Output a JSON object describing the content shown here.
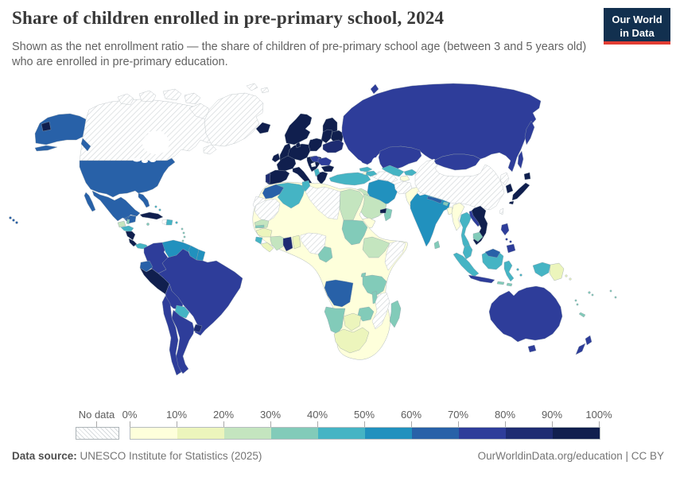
{
  "header": {
    "title": "Share of children enrolled in pre-primary school, 2024",
    "subtitle": "Shown as the net enrollment ratio — the share of children of pre-primary school age (between 3 and 5 years old) who are enrolled in pre-primary education."
  },
  "logo": {
    "line1": "Our World",
    "line2": "in Data",
    "bg_color": "#12304f",
    "accent_color": "#e23d33"
  },
  "legend": {
    "no_data_label": "No data",
    "tick_labels": [
      "0%",
      "10%",
      "20%",
      "30%",
      "40%",
      "50%",
      "60%",
      "70%",
      "80%",
      "90%",
      "100%"
    ]
  },
  "footer": {
    "data_source_label": "Data source:",
    "data_source": "UNESCO Institute for Statistics (2025)",
    "right": "OurWorldinData.org/education | CC BY"
  },
  "chart_data": {
    "type": "heatmap",
    "map_form": "world-choropleth",
    "title": "Share of children enrolled in pre-primary school, 2024",
    "unit": "%",
    "value_range": [
      0,
      100
    ],
    "legend_position": "bottom",
    "bin_colors": [
      "#feffdb",
      "#ecf5bc",
      "#c4e5bf",
      "#82cbb9",
      "#45b4c4",
      "#2191be",
      "#2861a8",
      "#2e3d9a",
      "#1e2c72",
      "#101f4e"
    ],
    "bin_ranges": [
      "0-10%",
      "10-20%",
      "20-30%",
      "30-40%",
      "40-50%",
      "50-60%",
      "60-70%",
      "70-80%",
      "80-90%",
      "90-100%"
    ],
    "no_data": {
      "label": "No data",
      "pattern": "gray-diagonal-hatch"
    },
    "regions": [
      {
        "id": "canada",
        "name": "Canada",
        "bin": 0
      },
      {
        "id": "greenland",
        "name": "Greenland",
        "bin": 0
      },
      {
        "id": "usa",
        "name": "United States",
        "bin": 7
      },
      {
        "id": "mexico",
        "name": "Mexico",
        "bin": 7
      },
      {
        "id": "guatemala",
        "name": "Guatemala",
        "bin": 3
      },
      {
        "id": "belize",
        "name": "Belize",
        "bin": 4
      },
      {
        "id": "honduras",
        "name": "Honduras",
        "bin": 5
      },
      {
        "id": "nicaragua",
        "name": "Nicaragua",
        "bin": 10
      },
      {
        "id": "costa-rica",
        "name": "Costa Rica",
        "bin": 10
      },
      {
        "id": "panama",
        "name": "Panama",
        "bin": 5
      },
      {
        "id": "cuba",
        "name": "Cuba",
        "bin": 10
      },
      {
        "id": "jamaica",
        "name": "Jamaica",
        "bin": 4
      },
      {
        "id": "haiti",
        "name": "Haiti",
        "bin": 0
      },
      {
        "id": "dominican-republic",
        "name": "Dominican Republic",
        "bin": 5
      },
      {
        "id": "puerto-rico",
        "name": "Puerto Rico",
        "bin": 5
      },
      {
        "id": "bahamas",
        "name": "Bahamas",
        "bin": 5
      },
      {
        "id": "lesser-antilles",
        "name": "Lesser Antilles",
        "bin": 4
      },
      {
        "id": "colombia",
        "name": "Colombia",
        "bin": 8
      },
      {
        "id": "venezuela",
        "name": "Venezuela",
        "bin": 6
      },
      {
        "id": "guyana",
        "name": "Guyana",
        "bin": 6
      },
      {
        "id": "suriname",
        "name": "Suriname",
        "bin": 6
      },
      {
        "id": "ecuador",
        "name": "Ecuador",
        "bin": 7
      },
      {
        "id": "peru",
        "name": "Peru",
        "bin": 10
      },
      {
        "id": "brazil",
        "name": "Brazil",
        "bin": 8
      },
      {
        "id": "bolivia",
        "name": "Bolivia",
        "bin": 8
      },
      {
        "id": "paraguay",
        "name": "Paraguay",
        "bin": 5
      },
      {
        "id": "uruguay",
        "name": "Uruguay",
        "bin": 9
      },
      {
        "id": "argentina",
        "name": "Argentina",
        "bin": 8
      },
      {
        "id": "chile",
        "name": "Chile",
        "bin": 8
      },
      {
        "id": "iceland",
        "name": "Iceland",
        "bin": 10
      },
      {
        "id": "uk",
        "name": "United Kingdom",
        "bin": 10
      },
      {
        "id": "ireland",
        "name": "Ireland",
        "bin": 10
      },
      {
        "id": "spain",
        "name": "Spain",
        "bin": 10
      },
      {
        "id": "portugal",
        "name": "Portugal",
        "bin": 9
      },
      {
        "id": "france",
        "name": "France",
        "bin": 10
      },
      {
        "id": "central-europe",
        "name": "Germany & Central Europe",
        "bin": 10
      },
      {
        "id": "denmark",
        "name": "Denmark",
        "bin": 10
      },
      {
        "id": "scandinavia",
        "name": "Norway & Sweden",
        "bin": 10
      },
      {
        "id": "finland",
        "name": "Finland",
        "bin": 10
      },
      {
        "id": "poland",
        "name": "Poland",
        "bin": 10
      },
      {
        "id": "baltics",
        "name": "Baltic states",
        "bin": 10
      },
      {
        "id": "belarus",
        "name": "Belarus",
        "bin": 10
      },
      {
        "id": "italy",
        "name": "Italy",
        "bin": 10
      },
      {
        "id": "balkans",
        "name": "Western Balkans",
        "bin": 10
      },
      {
        "id": "bulgaria",
        "name": "Bulgaria",
        "bin": 10
      },
      {
        "id": "greece",
        "name": "Greece",
        "bin": 10
      },
      {
        "id": "hungary",
        "name": "Hungary & Slovakia",
        "bin": 8
      },
      {
        "id": "romania",
        "name": "Romania",
        "bin": 8
      },
      {
        "id": "ukraine",
        "name": "Ukraine",
        "bin": 9
      },
      {
        "id": "albania",
        "name": "Albania & North Macedonia",
        "bin": 5
      },
      {
        "id": "bosnia",
        "name": "Bosnia and Herzegovina",
        "bin": 0
      },
      {
        "id": "russia",
        "name": "Russia",
        "bin": 8
      },
      {
        "id": "kazakhstan",
        "name": "Kazakhstan",
        "bin": 8
      },
      {
        "id": "mongolia",
        "name": "Mongolia",
        "bin": 8
      },
      {
        "id": "china",
        "name": "China",
        "bin": 0
      },
      {
        "id": "north-korea",
        "name": "North Korea",
        "bin": 0
      },
      {
        "id": "south-korea",
        "name": "South Korea",
        "bin": 10
      },
      {
        "id": "japan",
        "name": "Japan",
        "bin": 10
      },
      {
        "id": "taiwan",
        "name": "Taiwan",
        "bin": 0
      },
      {
        "id": "turkey",
        "name": "Turkey",
        "bin": 5
      },
      {
        "id": "georgia",
        "name": "Georgia",
        "bin": 5
      },
      {
        "id": "azerbaijan",
        "name": "Azerbaijan",
        "bin": 5
      },
      {
        "id": "armenia",
        "name": "Armenia",
        "bin": 1
      },
      {
        "id": "cyprus",
        "name": "Cyprus",
        "bin": 4
      },
      {
        "id": "syria",
        "name": "Syria",
        "bin": 3
      },
      {
        "id": "israel",
        "name": "Israel",
        "bin": 10
      },
      {
        "id": "jordan",
        "name": "Jordan",
        "bin": 5
      },
      {
        "id": "iraq",
        "name": "Iraq",
        "bin": 3
      },
      {
        "id": "iran",
        "name": "Iran",
        "bin": 6
      },
      {
        "id": "saudi-arabia",
        "name": "Saudi Arabia",
        "bin": 3
      },
      {
        "id": "yemen",
        "name": "Yemen",
        "bin": 1
      },
      {
        "id": "oman",
        "name": "Oman",
        "bin": 4
      },
      {
        "id": "uae",
        "name": "United Arab Emirates",
        "bin": 10
      },
      {
        "id": "turkmenistan",
        "name": "Turkmenistan",
        "bin": 0
      },
      {
        "id": "uzbekistan",
        "name": "Uzbekistan",
        "bin": 5
      },
      {
        "id": "kyrgyzstan",
        "name": "Kyrgyzstan",
        "bin": 5
      },
      {
        "id": "tajikistan",
        "name": "Tajikistan",
        "bin": 1
      },
      {
        "id": "afghanistan",
        "name": "Afghanistan",
        "bin": 0
      },
      {
        "id": "pakistan",
        "name": "Pakistan",
        "bin": 1
      },
      {
        "id": "india",
        "name": "India",
        "bin": 6
      },
      {
        "id": "kashmir",
        "name": "Kashmir (disputed)",
        "bin": 0
      },
      {
        "id": "nepal",
        "name": "Nepal",
        "bin": 7
      },
      {
        "id": "bhutan",
        "name": "Bhutan",
        "bin": 4
      },
      {
        "id": "bangladesh",
        "name": "Bangladesh",
        "bin": 1
      },
      {
        "id": "sri-lanka",
        "name": "Sri Lanka",
        "bin": 4
      },
      {
        "id": "myanmar",
        "name": "Myanmar",
        "bin": 1
      },
      {
        "id": "thailand",
        "name": "Thailand",
        "bin": 5
      },
      {
        "id": "laos",
        "name": "Laos",
        "bin": 8
      },
      {
        "id": "vietnam",
        "name": "Vietnam",
        "bin": 10
      },
      {
        "id": "cambodia",
        "name": "Cambodia",
        "bin": 4
      },
      {
        "id": "malaysia",
        "name": "Malaysia (peninsula)",
        "bin": 5
      },
      {
        "id": "east-malaysia",
        "name": "East Malaysia / Brunei",
        "bin": 7
      },
      {
        "id": "indonesia",
        "name": "Indonesia",
        "bin": 5
      },
      {
        "id": "java",
        "name": "Indonesia (Java)",
        "bin": 8
      },
      {
        "id": "lesser-sunda",
        "name": "Lesser Sunda Islands",
        "bin": 4
      },
      {
        "id": "philippines",
        "name": "Philippines",
        "bin": 8
      },
      {
        "id": "png",
        "name": "Papua New Guinea",
        "bin": 2
      },
      {
        "id": "solomon",
        "name": "Solomon Islands",
        "bin": 2
      },
      {
        "id": "fiji",
        "name": "Fiji",
        "bin": 4
      },
      {
        "id": "vanuatu",
        "name": "Vanuatu",
        "bin": 4
      },
      {
        "id": "new-caledonia",
        "name": "New Caledonia",
        "bin": 4
      },
      {
        "id": "tonga-samoa",
        "name": "Tonga / Samoa",
        "bin": 4
      },
      {
        "id": "australia",
        "name": "Australia",
        "bin": 8
      },
      {
        "id": "new-zealand",
        "name": "New Zealand",
        "bin": 8
      },
      {
        "id": "morocco",
        "name": "Morocco",
        "bin": 7
      },
      {
        "id": "western-sahara",
        "name": "Western Sahara",
        "bin": 0
      },
      {
        "id": "algeria",
        "name": "Algeria",
        "bin": 5
      },
      {
        "id": "tunisia",
        "name": "Tunisia",
        "bin": 5
      },
      {
        "id": "libya",
        "name": "Libya",
        "bin": 0
      },
      {
        "id": "egypt",
        "name": "Egypt",
        "bin": 3
      },
      {
        "id": "mauritania",
        "name": "Mauritania",
        "bin": 0
      },
      {
        "id": "africa-base",
        "name": "Sahel & Central–East Africa (Mali, Niger, Chad, DRC, Kenya, Zambia…)",
        "bin": 1
      },
      {
        "id": "senegal",
        "name": "Senegal",
        "bin": 3
      },
      {
        "id": "gambia",
        "name": "Gambia",
        "bin": 4
      },
      {
        "id": "guinea",
        "name": "Guinea",
        "bin": 2
      },
      {
        "id": "sierra-leone",
        "name": "Sierra Leone",
        "bin": 5
      },
      {
        "id": "liberia",
        "name": "Liberia",
        "bin": 2
      },
      {
        "id": "ivory-coast",
        "name": "Côte d'Ivoire",
        "bin": 3
      },
      {
        "id": "ghana",
        "name": "Ghana",
        "bin": 9
      },
      {
        "id": "togo-benin",
        "name": "Togo / Benin",
        "bin": 2
      },
      {
        "id": "nigeria",
        "name": "Nigeria",
        "bin": 0
      },
      {
        "id": "cameroon",
        "name": "Cameroon",
        "bin": 4
      },
      {
        "id": "sudan",
        "name": "Sudan",
        "bin": 4
      },
      {
        "id": "ethiopia",
        "name": "Ethiopia",
        "bin": 3
      },
      {
        "id": "somalia",
        "name": "Somalia",
        "bin": 0
      },
      {
        "id": "rwanda-burundi",
        "name": "Rwanda / Burundi",
        "bin": 4
      },
      {
        "id": "tanzania",
        "name": "Tanzania",
        "bin": 4
      },
      {
        "id": "angola",
        "name": "Angola",
        "bin": 7
      },
      {
        "id": "malawi",
        "name": "Malawi",
        "bin": 4
      },
      {
        "id": "mozambique",
        "name": "Mozambique",
        "bin": 0
      },
      {
        "id": "zimbabwe",
        "name": "Zimbabwe",
        "bin": 4
      },
      {
        "id": "namibia",
        "name": "Namibia",
        "bin": 4
      },
      {
        "id": "botswana",
        "name": "Botswana",
        "bin": 2
      },
      {
        "id": "south-africa",
        "name": "South Africa",
        "bin": 2
      },
      {
        "id": "madagascar",
        "name": "Madagascar",
        "bin": 4
      },
      {
        "id": "svalbard",
        "name": "Svalbard",
        "bin": 0
      }
    ]
  }
}
